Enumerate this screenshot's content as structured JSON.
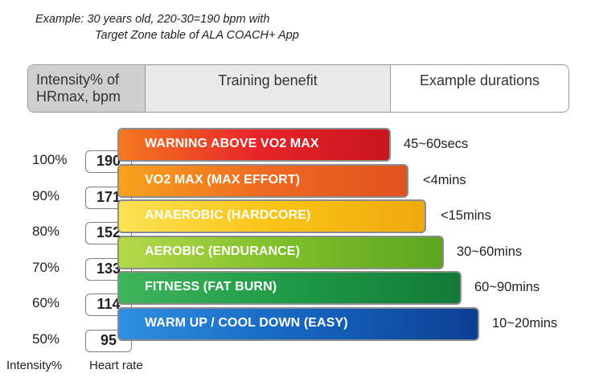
{
  "caption": {
    "line1": "Example: 30 years old, 220-30=190 bpm with",
    "line2": "Target Zone table of ALA COACH+ App"
  },
  "header": {
    "col1_line1": "Intensity% of",
    "col1_line2": "HRmax, bpm",
    "col2": "Training benefit",
    "col3": "Example durations"
  },
  "zones": [
    {
      "label": "WARNING ABOVE VO2 MAX",
      "duration": "45~60secs",
      "colors": [
        "#f47a1f",
        "#e8262a",
        "#c9141e"
      ]
    },
    {
      "label": "VO2 MAX (MAX EFFORT)",
      "duration": "<4mins",
      "colors": [
        "#f7a31c",
        "#ee6a22",
        "#e0521e"
      ]
    },
    {
      "label": "ANAEROBIC (HARDCORE)",
      "duration": "<15mins",
      "colors": [
        "#fbe255",
        "#f9c416",
        "#f0a90e"
      ]
    },
    {
      "label": "AEROBIC (ENDURANCE)",
      "duration": "30~60mins",
      "colors": [
        "#b4d84a",
        "#7fbf2a",
        "#5da521"
      ]
    },
    {
      "label": "FITNESS (FAT BURN)",
      "duration": "60~90mins",
      "colors": [
        "#3fb45a",
        "#1f9a48",
        "#127a37"
      ]
    },
    {
      "label": "WARM UP / COOL DOWN (EASY)",
      "duration": "10~20mins",
      "colors": [
        "#2f8fe0",
        "#1565c0",
        "#0d3f94"
      ]
    }
  ],
  "intensity_levels": [
    "100%",
    "90%",
    "80%",
    "70%",
    "60%",
    "50%"
  ],
  "heart_rates": [
    "190",
    "171",
    "152",
    "133",
    "114",
    "95"
  ],
  "footer": {
    "intensity_label": "Intensity%",
    "heart_rate_label": "Heart rate"
  }
}
